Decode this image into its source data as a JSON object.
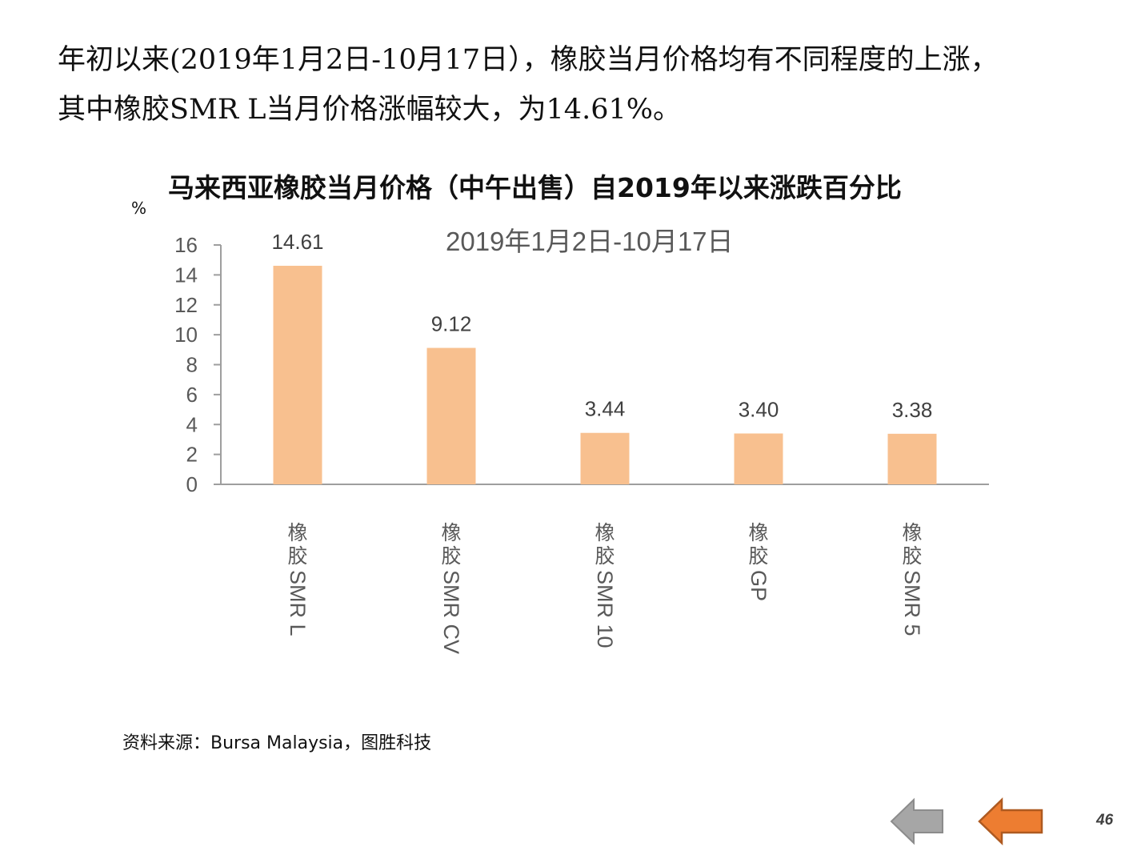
{
  "intro": {
    "line1": "年初以来(2019年1月2日-10月17日），橡胶当月价格均有不同程度的上涨，",
    "line2": "其中橡胶SMR L当月价格涨幅较大，为14.61%。"
  },
  "chart_data": {
    "type": "bar",
    "title": "马来西亚橡胶当月价格（中午出售）自2019年以来涨跌百分比",
    "subtitle": "2019年1月2日-10月17日",
    "ylabel": "%",
    "xlabel": "",
    "categories": [
      "橡胶SMR L",
      "橡胶SMR CV",
      "橡胶SMR 10",
      "橡胶GP",
      "橡胶SMR 5"
    ],
    "values": [
      14.61,
      9.12,
      3.44,
      3.4,
      3.38
    ],
    "value_labels": [
      "14.61",
      "9.12",
      "3.44",
      "3.40",
      "3.38"
    ],
    "ylim": [
      0,
      16
    ],
    "yticks": [
      "0",
      "2",
      "4",
      "6",
      "8",
      "10",
      "12",
      "14",
      "16"
    ],
    "grid": false,
    "legend": "none",
    "bar_color": "#F8C08F",
    "axis_color": "#9E9E9E",
    "tick_label_color": "#595959"
  },
  "source": "资料来源：Bursa Malaysia，图胜科技",
  "navigation": {
    "prev_icon": "left-arrow-gray-icon",
    "next_icon": "left-arrow-orange-icon",
    "prev_color": "#A6A6A6",
    "next_color": "#ED7D31"
  },
  "page_number": "46"
}
